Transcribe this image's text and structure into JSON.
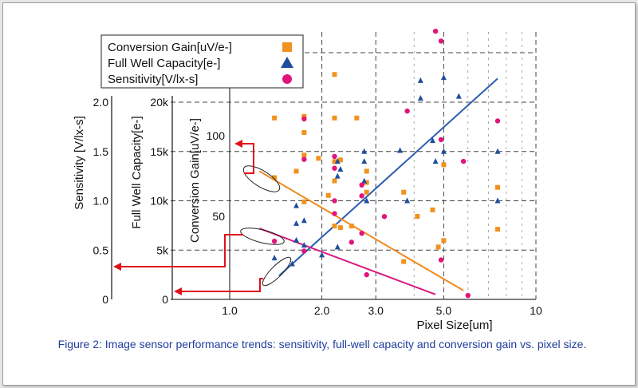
{
  "chart_data": {
    "type": "scatter",
    "title": "",
    "xlabel": "Pixel Size[um]",
    "x_scale": "log",
    "xlim": [
      1.0,
      10
    ],
    "x_ticks": [
      {
        "value": 1.0,
        "label": "1.0"
      },
      {
        "value": 2.0,
        "label": "2.0"
      },
      {
        "value": 3.0,
        "label": "3.0"
      },
      {
        "value": 5.0,
        "label": "5.0"
      },
      {
        "value": 10,
        "label": "10"
      }
    ],
    "y_axes": [
      {
        "id": "sens",
        "label": "Sensitivity [V/lx-s]",
        "ylim": [
          0,
          2.0
        ],
        "ticks": [
          {
            "value": 0,
            "label": "0"
          },
          {
            "value": 0.5,
            "label": "0.5"
          },
          {
            "value": 1.0,
            "label": "1.0"
          },
          {
            "value": 1.5,
            "label": "1.5"
          },
          {
            "value": 2.0,
            "label": "2.0"
          }
        ]
      },
      {
        "id": "fwc",
        "label": "Full Well Capacity[e-]",
        "ylim": [
          0,
          20000
        ],
        "ticks": [
          {
            "value": 0,
            "label": "0"
          },
          {
            "value": 5000,
            "label": "5k"
          },
          {
            "value": 10000,
            "label": "10k"
          },
          {
            "value": 15000,
            "label": "15k"
          },
          {
            "value": 20000,
            "label": "20k"
          }
        ]
      },
      {
        "id": "cg",
        "label": "Conversion Gain[uV/e-]",
        "ylim": [
          0,
          125
        ],
        "ticks": [
          {
            "value": 50,
            "label": "50"
          },
          {
            "value": 100,
            "label": "100"
          }
        ]
      }
    ],
    "grid": true,
    "legend": {
      "position": "top-left",
      "entries": [
        {
          "label": "Conversion Gain[uV/e-]",
          "marker": "square",
          "color": "#f0921e"
        },
        {
          "label": "Full Well Capacity[e-]",
          "marker": "triangle",
          "color": "#1f4e9c"
        },
        {
          "label": "Sensitivity[V/lx-s]",
          "marker": "circle",
          "color": "#e0157c"
        }
      ]
    },
    "series": [
      {
        "name": "Conversion Gain",
        "axis": "cg",
        "marker": "square",
        "color": "#f0921e",
        "points": [
          [
            1.4,
            111
          ],
          [
            1.4,
            74
          ],
          [
            1.75,
            112
          ],
          [
            1.75,
            102
          ],
          [
            1.65,
            78
          ],
          [
            1.75,
            88
          ],
          [
            1.75,
            59
          ],
          [
            1.95,
            86
          ],
          [
            2.2,
            138
          ],
          [
            2.2,
            111
          ],
          [
            2.2,
            84
          ],
          [
            2.3,
            85
          ],
          [
            2.2,
            72
          ],
          [
            2.1,
            63
          ],
          [
            2.2,
            44
          ],
          [
            2.3,
            43
          ],
          [
            2.6,
            111
          ],
          [
            2.5,
            44
          ],
          [
            2.8,
            78
          ],
          [
            2.8,
            71
          ],
          [
            2.8,
            65
          ],
          [
            3.7,
            65
          ],
          [
            3.7,
            22
          ],
          [
            4.1,
            50
          ],
          [
            4.6,
            54
          ],
          [
            4.8,
            31
          ],
          [
            5.0,
            82
          ],
          [
            5.0,
            35
          ],
          [
            7.5,
            68
          ],
          [
            7.5,
            42
          ]
        ]
      },
      {
        "name": "Full Well Capacity",
        "axis": "fwc",
        "marker": "triangle",
        "color": "#1f4e9c",
        "points": [
          [
            1.4,
            4200
          ],
          [
            1.6,
            3600
          ],
          [
            1.65,
            9500
          ],
          [
            1.65,
            7700
          ],
          [
            1.65,
            6000
          ],
          [
            1.75,
            8000
          ],
          [
            1.75,
            5500
          ],
          [
            2.0,
            4500
          ],
          [
            2.25,
            14000
          ],
          [
            2.3,
            13200
          ],
          [
            2.25,
            12500
          ],
          [
            2.25,
            5300
          ],
          [
            2.75,
            15000
          ],
          [
            2.75,
            14000
          ],
          [
            2.75,
            12000
          ],
          [
            2.8,
            10000
          ],
          [
            3.6,
            15100
          ],
          [
            3.8,
            10000
          ],
          [
            4.2,
            20400
          ],
          [
            4.2,
            22200
          ],
          [
            4.6,
            16100
          ],
          [
            4.7,
            14000
          ],
          [
            5.0,
            22500
          ],
          [
            5.0,
            15000
          ],
          [
            5.6,
            20600
          ],
          [
            7.5,
            15000
          ],
          [
            7.5,
            10000
          ]
        ]
      },
      {
        "name": "Sensitivity",
        "axis": "sens",
        "marker": "circle",
        "color": "#e0157c",
        "points": [
          [
            1.4,
            0.59
          ],
          [
            1.75,
            1.83
          ],
          [
            1.75,
            1.42
          ],
          [
            1.75,
            0.49
          ],
          [
            2.2,
            1.45
          ],
          [
            2.2,
            1.33
          ],
          [
            2.2,
            1.0
          ],
          [
            2.2,
            0.87
          ],
          [
            2.5,
            0.58
          ],
          [
            2.7,
            1.16
          ],
          [
            2.7,
            1.05
          ],
          [
            2.7,
            0.67
          ],
          [
            2.8,
            0.25
          ],
          [
            3.2,
            0.84
          ],
          [
            3.8,
            1.91
          ],
          [
            4.7,
            2.72
          ],
          [
            4.9,
            2.62
          ],
          [
            4.9,
            1.62
          ],
          [
            4.9,
            0.4
          ],
          [
            5.8,
            1.4
          ],
          [
            6.0,
            0.04
          ],
          [
            7.5,
            1.81
          ]
        ]
      }
    ],
    "trend_lines": [
      {
        "name": "Full Well Capacity trend",
        "axis": "fwc",
        "color": "#2b5db0",
        "from": [
          1.45,
          2400
        ],
        "to": [
          7.5,
          22400
        ]
      },
      {
        "name": "Conversion Gain trend",
        "axis": "cg",
        "color": "#ee8a1c",
        "from": [
          1.25,
          78
        ],
        "to": [
          5.8,
          4
        ]
      },
      {
        "name": "Sensitivity trend",
        "axis": "sens",
        "color": "#d81b80",
        "from": [
          1.25,
          0.72
        ],
        "to": [
          4.7,
          0.05
        ]
      }
    ]
  },
  "caption": "Figure 2: Image sensor performance trends: sensitivity, full-well capacity and conversion gain vs. pixel size."
}
